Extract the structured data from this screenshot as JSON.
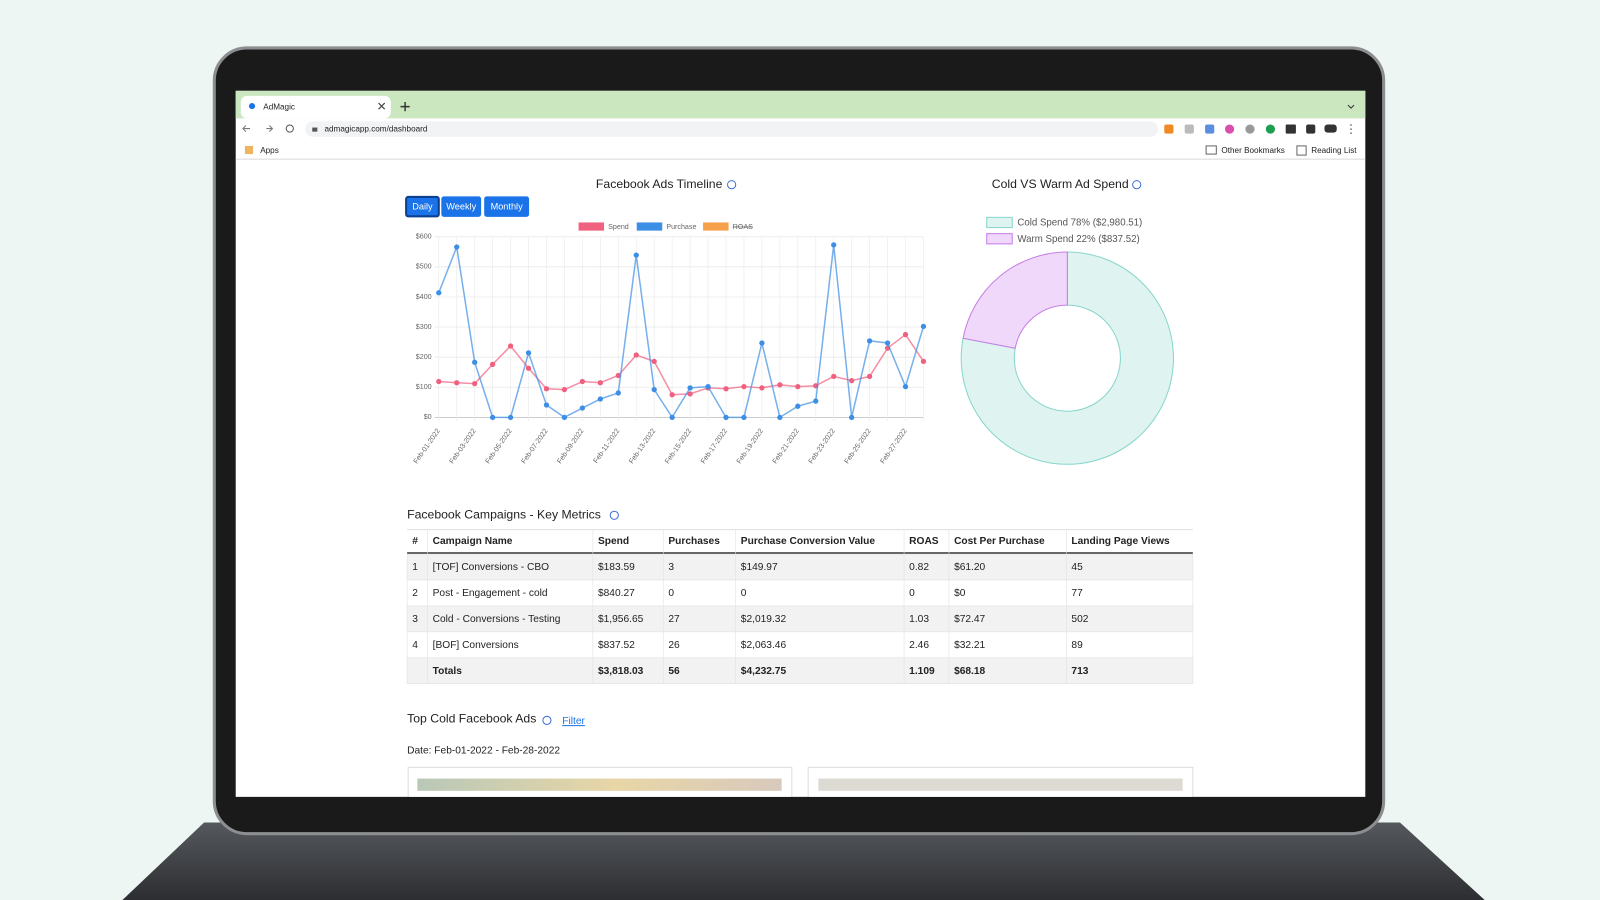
{
  "browser": {
    "tab": "AdMagic",
    "url": "admagicapp.com/dashboard",
    "apps": "Apps",
    "other_bookmarks": "Other Bookmarks",
    "reading_list": "Reading List"
  },
  "timeline": {
    "buttons": [
      "Daily",
      "Weekly",
      "Monthly"
    ]
  },
  "chart_data": [
    {
      "type": "line",
      "title": "Facebook Ads Timeline",
      "categories": [
        "Feb-01-2022",
        null,
        "Feb-03-2022",
        null,
        "Feb-05-2022",
        null,
        "Feb-07-2022",
        null,
        "Feb-09-2022",
        null,
        "Feb-11-2022",
        null,
        "Feb-13-2022",
        null,
        "Feb-15-2022",
        null,
        "Feb-17-2022",
        null,
        "Feb-19-2022",
        null,
        "Feb-21-2022",
        null,
        "Feb-23-2022",
        null,
        "Feb-25-2022",
        null,
        "Feb-27-2022",
        null
      ],
      "series": [
        {
          "name": "Spend",
          "color": "#f0607f",
          "values": [
            119,
            115,
            112,
            176,
            237,
            163,
            95,
            92,
            119,
            115,
            139,
            207,
            186,
            75,
            78,
            98,
            95,
            102,
            98,
            108,
            102,
            105,
            136,
            122,
            136,
            230,
            275,
            186
          ]
        },
        {
          "name": "Purchase",
          "color": "#3d8fe6",
          "values": [
            414,
            566,
            183,
            0,
            0,
            214,
            41,
            0,
            31,
            61,
            81,
            539,
            92,
            0,
            98,
            102,
            0,
            0,
            247,
            0,
            37,
            54,
            573,
            0,
            254,
            247,
            102,
            302
          ]
        },
        {
          "name": "ROAS",
          "color": "#f5a04a",
          "hidden": true
        }
      ],
      "ylim": [
        0,
        600
      ],
      "yticks": [
        {
          "value": 0,
          "label": "$0"
        },
        {
          "value": 100,
          "label": "$100"
        },
        {
          "value": 200,
          "label": "$200"
        },
        {
          "value": 300,
          "label": "$300"
        },
        {
          "value": 400,
          "label": "$400"
        },
        {
          "value": 500,
          "label": "$500"
        },
        {
          "value": 600,
          "label": "$600"
        }
      ],
      "grid": true,
      "legend": "top"
    },
    {
      "type": "doughnut",
      "title": "Cold VS Warm Ad Spend",
      "categories": [
        "Cold Spend",
        "Warm Spend"
      ],
      "values": [
        78,
        22
      ],
      "labels": [
        "Cold Spend 78% ($2,980.51)",
        "Warm Spend 22% ($837.52)"
      ],
      "colors": [
        "#dff4f1",
        "#f0d8fb"
      ],
      "borders": [
        "#86d6cb",
        "#c57de6"
      ],
      "legend": "top"
    }
  ],
  "table": {
    "title": "Facebook Campaigns - Key Metrics",
    "header": [
      "#",
      "Campaign Name",
      "Spend",
      "Purchases",
      "Purchase Conversion Value",
      "ROAS",
      "Cost Per Purchase",
      "Landing Page Views"
    ],
    "rows": [
      [
        "1",
        "[TOF] Conversions - CBO",
        "$183.59",
        "3",
        "$149.97",
        "0.82",
        "$61.20",
        "45"
      ],
      [
        "2",
        "Post - Engagement - cold",
        "$840.27",
        "0",
        "0",
        "0",
        "$0",
        "77"
      ],
      [
        "3",
        "Cold - Conversions - Testing",
        "$1,956.65",
        "27",
        "$2,019.32",
        "1.03",
        "$72.47",
        "502"
      ],
      [
        "4",
        "[BOF] Conversions",
        "$837.52",
        "26",
        "$2,063.46",
        "2.46",
        "$32.21",
        "89"
      ]
    ],
    "totals": [
      "Totals",
      "$3,818.03",
      "56",
      "$4,232.75",
      "1.109",
      "$68.18",
      "713"
    ]
  },
  "top_ads": {
    "title": "Top Cold Facebook Ads",
    "filter": "Filter",
    "date": "Date: Feb-01-2022 - Feb-28-2022"
  }
}
